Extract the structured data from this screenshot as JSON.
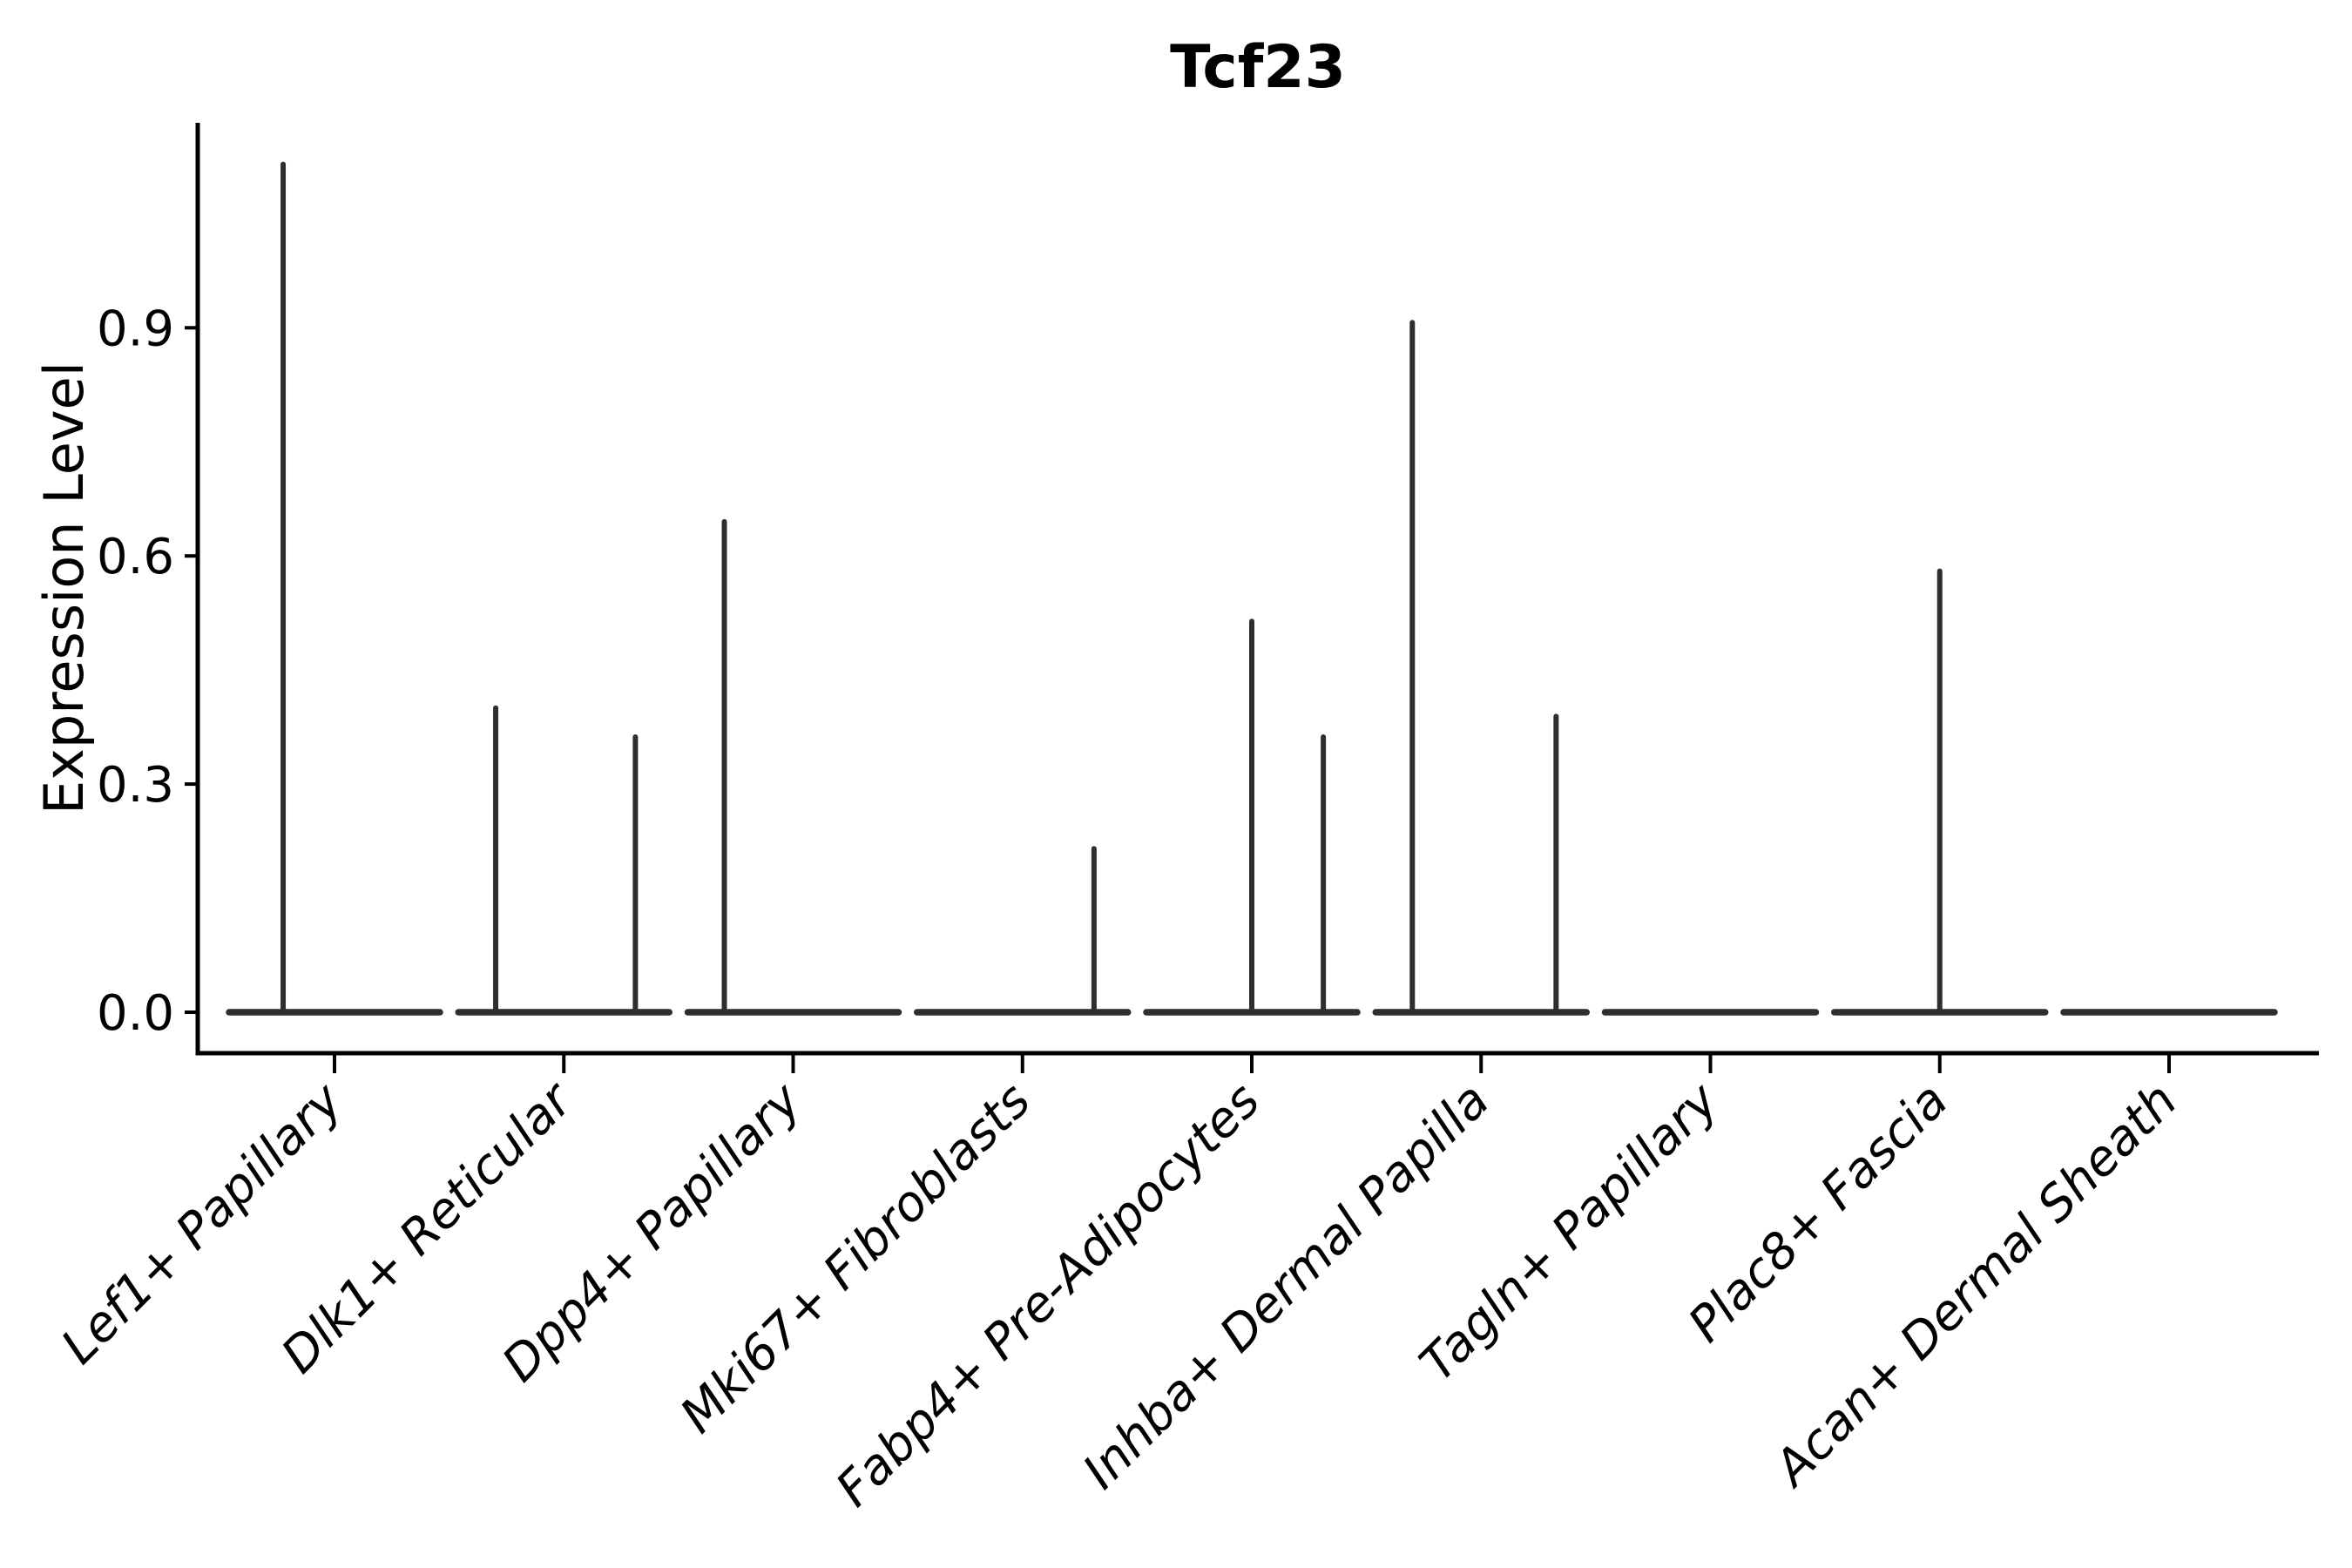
{
  "page": {
    "background": "#ffffff"
  },
  "chart_data": {
    "type": "violin",
    "title": "Tcf23",
    "xlabel": "",
    "ylabel": "Expression Level",
    "grid": false,
    "legend_position": "none",
    "ylim": [
      -0.056,
      1.171
    ],
    "ytick_labels": [
      "0.0",
      "0.3",
      "0.6",
      "0.9"
    ],
    "ytick_values": [
      0.0,
      0.3,
      0.6,
      0.9
    ],
    "categories": [
      "Lef1+ Papillary",
      "Dlk1+ Reticular",
      "Dpp4+ Papillary",
      "Mki67+ Fibroblasts",
      "Fabp4+ Pre-Adipocytes",
      "Inhba+ Dermal Papilla",
      "Tagln+ Papillary",
      "Plac8+ Fascia",
      "Acan+ Dermal Sheath"
    ],
    "violins": [
      {
        "category": "Lef1+ Papillary",
        "base_at_zero": true,
        "spikes": [
          {
            "offset_frac": -0.224,
            "value": 1.115
          }
        ]
      },
      {
        "category": "Dlk1+ Reticular",
        "base_at_zero": true,
        "spikes": [
          {
            "offset_frac": -0.297,
            "value": 0.4
          },
          {
            "offset_frac": 0.312,
            "value": 0.362
          }
        ]
      },
      {
        "category": "Dpp4+ Papillary",
        "base_at_zero": true,
        "spikes": [
          {
            "offset_frac": -0.3,
            "value": 0.645
          }
        ]
      },
      {
        "category": "Mki67+ Fibroblasts",
        "base_at_zero": true,
        "spikes": [
          {
            "offset_frac": 0.312,
            "value": 0.215
          }
        ]
      },
      {
        "category": "Fabp4+ Pre-Adipocytes",
        "base_at_zero": true,
        "spikes": [
          {
            "offset_frac": 0.0,
            "value": 0.514
          },
          {
            "offset_frac": 0.312,
            "value": 0.362
          }
        ]
      },
      {
        "category": "Inhba+ Dermal Papilla",
        "base_at_zero": true,
        "spikes": [
          {
            "offset_frac": -0.3,
            "value": 0.907
          },
          {
            "offset_frac": 0.327,
            "value": 0.389
          }
        ]
      },
      {
        "category": "Tagln+ Papillary",
        "base_at_zero": true,
        "spikes": []
      },
      {
        "category": "Plac8+ Fascia",
        "base_at_zero": true,
        "spikes": [
          {
            "offset_frac": 0.0,
            "value": 0.58
          }
        ]
      },
      {
        "category": "Acan+ Dermal Sheath",
        "base_at_zero": true,
        "spikes": []
      }
    ],
    "colors": {
      "violin_stroke": "#2e2e2e",
      "axis": "#000000",
      "text": "#000000",
      "background": "#ffffff"
    }
  }
}
